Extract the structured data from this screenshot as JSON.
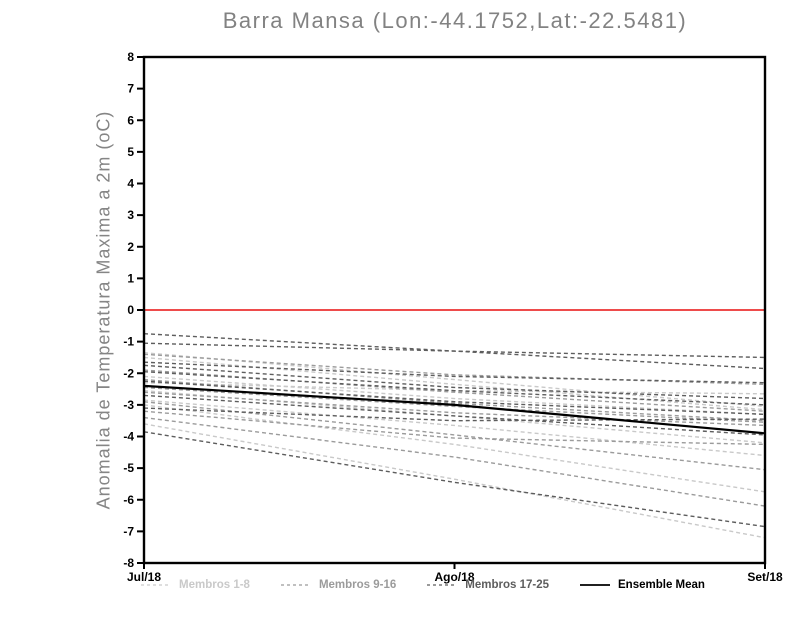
{
  "chart_data": {
    "type": "line",
    "title": "Barra Mansa (Lon:-44.1752,Lat:-22.5481)",
    "ylabel": "Anomalia de Temperatura Maxima a 2m (oC)",
    "xlabel": "",
    "x_categories": [
      "Jul/18",
      "Ago/18",
      "Set/18"
    ],
    "y_ticks": [
      "8",
      "7",
      "6",
      "5",
      "4",
      "3",
      "2",
      "1",
      "0",
      "-1",
      "-2",
      "-3",
      "-4",
      "-5",
      "-6",
      "-7",
      "-8"
    ],
    "ylim": [
      -8,
      8
    ],
    "grid": false,
    "legend_position": "bottom",
    "frame_color": "#000000",
    "zero_line": {
      "value": 0,
      "color": "#ee4b4b"
    },
    "legend": [
      {
        "label": "Membros 1-8",
        "color": "#c9c9c9",
        "style": "dashed"
      },
      {
        "label": "Membros 9-16",
        "color": "#9b9b9b",
        "style": "dashed"
      },
      {
        "label": "Membros 17-25",
        "color": "#5d5d5d",
        "style": "dashed"
      },
      {
        "label": "Ensemble Mean",
        "color": "#000000",
        "style": "solid"
      }
    ],
    "series": [
      {
        "name": "Membro 1",
        "group": 0,
        "values": [
          -1.35,
          -2.2,
          -3.05
        ]
      },
      {
        "name": "Membro 2",
        "group": 0,
        "values": [
          -1.5,
          -2.35,
          -3.15
        ]
      },
      {
        "name": "Membro 3",
        "group": 0,
        "values": [
          -2.1,
          -2.8,
          -3.3
        ]
      },
      {
        "name": "Membro 4",
        "group": 0,
        "values": [
          -2.55,
          -3.35,
          -4.2
        ]
      },
      {
        "name": "Membro 5",
        "group": 0,
        "values": [
          -2.85,
          -3.65,
          -4.6
        ]
      },
      {
        "name": "Membro 6",
        "group": 0,
        "values": [
          -3.0,
          -4.25,
          -5.75
        ]
      },
      {
        "name": "Membro 7",
        "group": 0,
        "values": [
          -3.6,
          -5.35,
          -7.2
        ]
      },
      {
        "name": "Membro 8",
        "group": 0,
        "values": [
          -2.3,
          -2.55,
          -2.65
        ]
      },
      {
        "name": "Membro 9",
        "group": 1,
        "values": [
          -1.4,
          -2.05,
          -2.35
        ]
      },
      {
        "name": "Membro 10",
        "group": 1,
        "values": [
          -1.9,
          -2.6,
          -3.2
        ]
      },
      {
        "name": "Membro 11",
        "group": 1,
        "values": [
          -2.2,
          -2.95,
          -3.5
        ]
      },
      {
        "name": "Membro 12",
        "group": 1,
        "values": [
          -2.6,
          -3.25,
          -3.65
        ]
      },
      {
        "name": "Membro 13",
        "group": 1,
        "values": [
          -2.9,
          -3.95,
          -5.05
        ]
      },
      {
        "name": "Membro 14",
        "group": 1,
        "values": [
          -3.2,
          -4.05,
          -4.25
        ]
      },
      {
        "name": "Membro 15",
        "group": 1,
        "values": [
          -3.4,
          -4.65,
          -6.2
        ]
      },
      {
        "name": "Membro 16",
        "group": 1,
        "values": [
          -2.45,
          -3.05,
          -3.55
        ]
      },
      {
        "name": "Membro 17",
        "group": 2,
        "values": [
          -0.75,
          -1.3,
          -1.85
        ]
      },
      {
        "name": "Membro 18",
        "group": 2,
        "values": [
          -1.05,
          -1.3,
          -1.5
        ]
      },
      {
        "name": "Membro 19",
        "group": 2,
        "values": [
          -1.65,
          -2.1,
          -2.3
        ]
      },
      {
        "name": "Membro 20",
        "group": 2,
        "values": [
          -1.75,
          -2.45,
          -2.8
        ]
      },
      {
        "name": "Membro 21",
        "group": 2,
        "values": [
          -1.95,
          -2.55,
          -3.0
        ]
      },
      {
        "name": "Membro 22",
        "group": 2,
        "values": [
          -2.25,
          -2.9,
          -3.3
        ]
      },
      {
        "name": "Membro 23",
        "group": 2,
        "values": [
          -2.7,
          -3.35,
          -3.95
        ]
      },
      {
        "name": "Membro 24",
        "group": 2,
        "values": [
          -3.1,
          -3.5,
          -3.45
        ]
      },
      {
        "name": "Membro 25",
        "group": 2,
        "values": [
          -3.85,
          -5.45,
          -6.85
        ]
      },
      {
        "name": "Ensemble Mean",
        "group": 3,
        "values": [
          -2.4,
          -3.0,
          -3.9
        ]
      }
    ]
  }
}
